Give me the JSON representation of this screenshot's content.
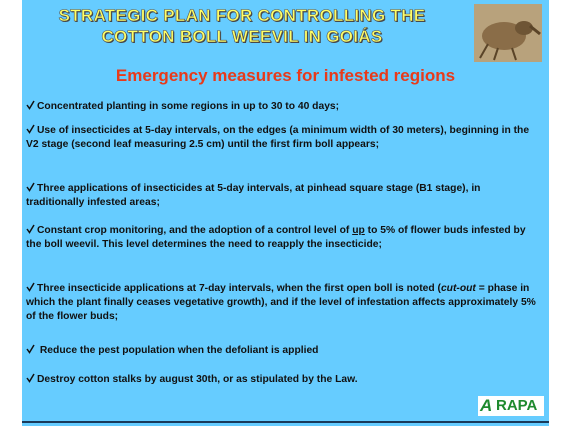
{
  "header": {
    "title_lines": [
      "STRATEGIC PLAN FOR CONTROLLING THE",
      "COTTON BOLL WEEVIL IN GOIÁS"
    ],
    "subtitle": "Emergency measures for infested regions"
  },
  "bullets": [
    [
      "Concentrated planting in some regions in up to 30 to 40 days;"
    ],
    [
      "Use of insecticides at 5-day intervals, on the edges (a minimum width of 30 meters), beginning in the V2 stage (second leaf measuring 2.5 cm) until the first firm boll appears;"
    ],
    [
      "Three applications of insecticides at 5-day intervals, at pinhead square stage (B1 stage), in traditionally infested areas;"
    ],
    [
      "Constant crop monitoring, and the adoption of a control level of ",
      "up",
      " to 5% of flower buds infested by the boll weevil. This level determines the need to reapply the insecticide;"
    ],
    [
      "Three insecticide applications at 7-day intervals, when the first open boll is noted (",
      "cut-out",
      " = phase in which the plant finally ceases vegetative growth), and if the level of infestation affects approximately 5% of the flower buds;"
    ],
    [
      " Reduce the pest population when  the defoliant  is applied"
    ],
    [
      "Destroy cotton stalks by august 30th, or as stipulated by the Law."
    ]
  ],
  "logo": {
    "mark": "A",
    "text": "RAPA"
  }
}
